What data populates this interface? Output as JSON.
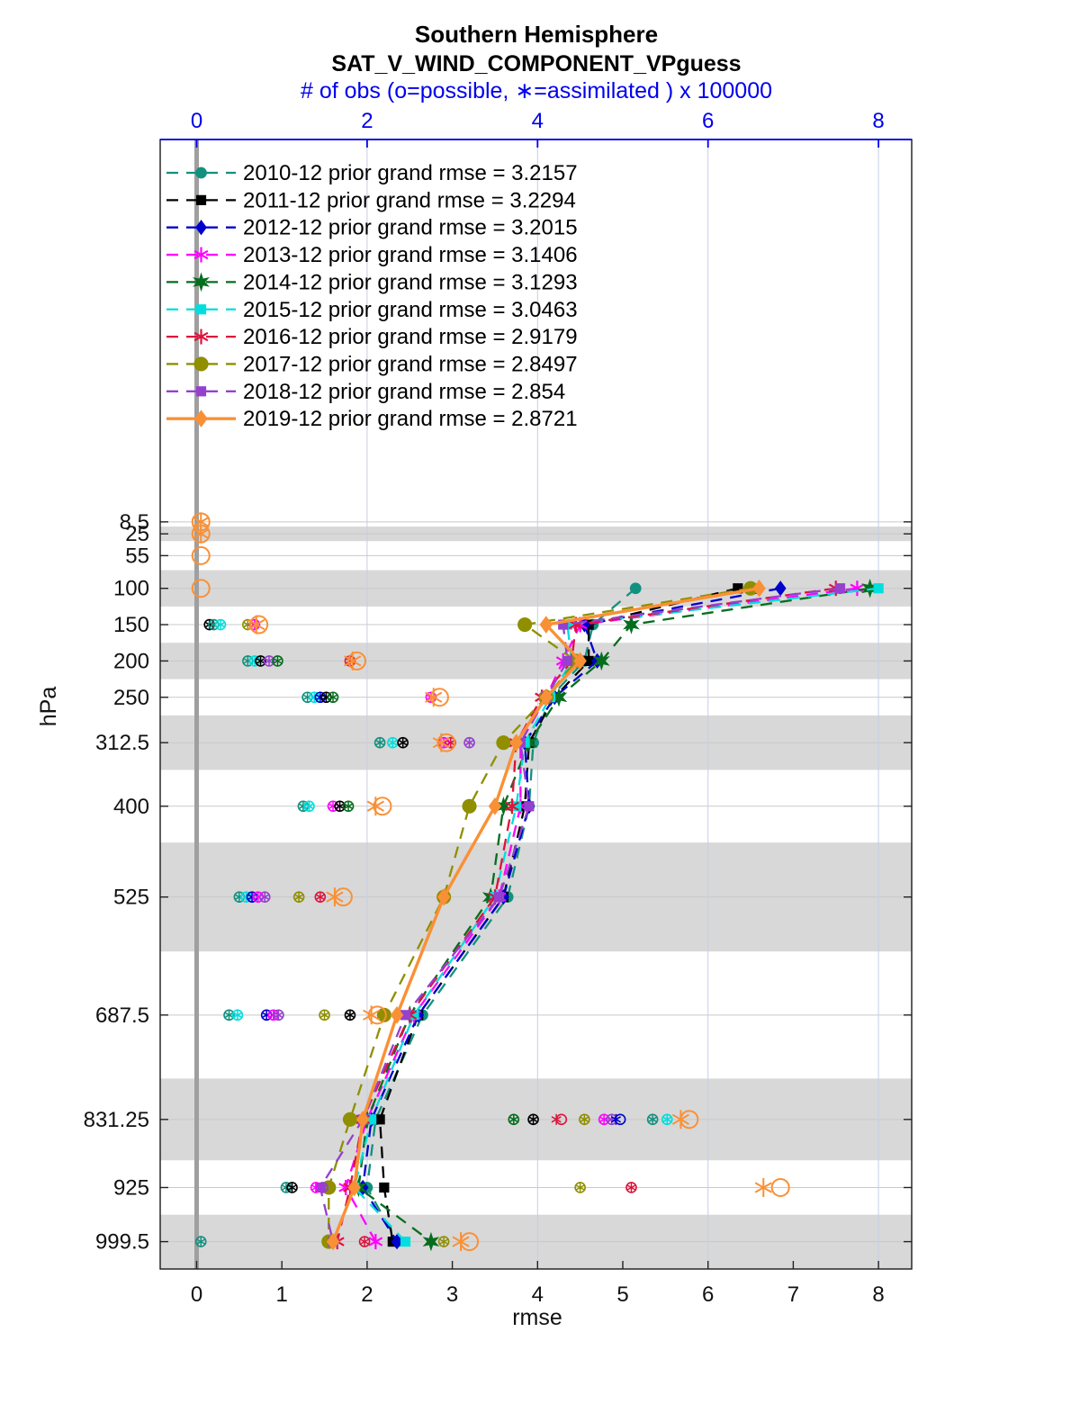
{
  "chart_data": {
    "type": "line",
    "title": "Southern Hemisphere",
    "subtitle": "SAT_V_WIND_COMPONENT_VPguess",
    "top_axis": {
      "label": "# of obs (o=possible, ∗=assimilated ) x 100000",
      "ticks": [
        0,
        2,
        4,
        6,
        8
      ],
      "color": "#0000ee",
      "scale_factor": 100000
    },
    "x_axis": {
      "label": "rmse",
      "ticks": [
        0,
        1,
        2,
        3,
        4,
        5,
        6,
        7,
        8
      ],
      "range": [
        -0.45,
        8.42
      ]
    },
    "y_axis": {
      "label": "hPa",
      "levels": [
        8.5,
        25,
        55,
        100,
        150,
        200,
        250,
        312.5,
        400,
        525,
        687.5,
        831.25,
        925,
        999.5
      ],
      "level_labels": [
        "8.5",
        "25",
        "55",
        "100",
        "150",
        "200",
        "250",
        "312.5",
        "400",
        "525",
        "687.5",
        "831.25",
        "925",
        "999.5"
      ]
    },
    "level_edges": [
      2,
      15,
      35,
      75,
      125,
      175,
      225,
      275,
      350,
      450,
      600,
      775,
      887.5,
      962.5,
      1037
    ],
    "shaded_levels": [
      25,
      100,
      200,
      312.5,
      525,
      831.25,
      999.5
    ],
    "band_color": "#d8d8d8",
    "zero_line_color": "#9f9f9f",
    "grid_color": "#c7cde6",
    "rmse_levels": [
      100,
      150,
      200,
      250,
      312.5,
      400,
      525,
      687.5,
      831.25,
      925,
      999.5
    ],
    "series": [
      {
        "year": "2010-12",
        "label": "2010-12 prior grand rmse = 3.2157",
        "grand_rmse": 3.2157,
        "color": "#13917f",
        "marker": "circle",
        "line": "dashed",
        "msize": 7.5,
        "rmse": [
          5.15,
          4.65,
          4.55,
          4.15,
          3.95,
          3.9,
          3.65,
          2.65,
          2.1,
          2.0,
          2.35
        ]
      },
      {
        "year": "2011-12",
        "label": "2011-12 prior grand rmse = 3.2294",
        "grand_rmse": 3.2294,
        "color": "#000000",
        "marker": "square",
        "line": "dashed",
        "msize": 7,
        "rmse": [
          6.35,
          4.6,
          4.6,
          4.2,
          3.9,
          3.85,
          3.6,
          2.6,
          2.15,
          2.2,
          2.3
        ]
      },
      {
        "year": "2012-12",
        "label": "2012-12 prior grand rmse = 3.2015",
        "grand_rmse": 3.2015,
        "color": "#0000cd",
        "marker": "diamond",
        "line": "dashed",
        "msize": 7.5,
        "rmse": [
          6.85,
          4.55,
          4.7,
          4.2,
          3.85,
          3.9,
          3.6,
          2.6,
          2.05,
          1.95,
          2.35
        ]
      },
      {
        "year": "2013-12",
        "label": "2013-12 prior grand rmse = 3.1406",
        "grand_rmse": 3.1406,
        "color": "#ff00ff",
        "marker": "asterisk",
        "line": "dashed",
        "msize": 8.5,
        "rmse": [
          7.75,
          4.5,
          4.3,
          4.1,
          3.8,
          3.8,
          3.55,
          2.55,
          2.0,
          1.75,
          2.1
        ]
      },
      {
        "year": "2014-12",
        "label": "2014-12 prior grand rmse = 3.1293",
        "grand_rmse": 3.1293,
        "color": "#056e1e",
        "marker": "hexagram",
        "line": "dashed",
        "msize": 9,
        "rmse": [
          7.9,
          5.1,
          4.75,
          4.25,
          3.9,
          3.6,
          3.45,
          2.5,
          2.0,
          1.9,
          2.75
        ]
      },
      {
        "year": "2015-12",
        "label": "2015-12 prior grand rmse = 3.0463",
        "grand_rmse": 3.0463,
        "color": "#00dede",
        "marker": "square",
        "line": "dashed",
        "msize": 7,
        "rmse": [
          8.0,
          4.35,
          4.4,
          4.15,
          3.85,
          3.75,
          3.5,
          2.55,
          2.05,
          1.85,
          2.45
        ]
      },
      {
        "year": "2016-12",
        "label": "2016-12 prior grand rmse = 2.9179",
        "grand_rmse": 2.9179,
        "color": "#dc143c",
        "marker": "asterisk",
        "line": "dashed",
        "msize": 8.5,
        "rmse": [
          7.5,
          4.45,
          4.4,
          4.05,
          3.75,
          3.7,
          3.5,
          2.5,
          1.95,
          1.8,
          1.65
        ]
      },
      {
        "year": "2017-12",
        "label": "2017-12 prior grand rmse = 2.8497",
        "grand_rmse": 2.8497,
        "color": "#8f8f00",
        "marker": "circle",
        "line": "dashed",
        "msize": 9.5,
        "rmse": [
          6.5,
          3.85,
          4.45,
          4.1,
          3.6,
          3.2,
          2.9,
          2.2,
          1.8,
          1.55,
          1.55
        ]
      },
      {
        "year": "2018-12",
        "label": "2018-12 prior grand rmse = 2.854",
        "grand_rmse": 2.854,
        "color": "#9540cf",
        "marker": "square",
        "line": "dashed",
        "msize": 7,
        "rmse": [
          7.55,
          4.3,
          4.35,
          4.1,
          3.8,
          3.9,
          3.55,
          2.45,
          1.95,
          1.45,
          1.6
        ]
      },
      {
        "year": "2019-12",
        "label": "2019-12 prior grand rmse = 2.8721",
        "grand_rmse": 2.8721,
        "color": "#fa9035",
        "marker": "diamond",
        "line": "solid",
        "msize": 8.5,
        "rmse": [
          6.6,
          4.1,
          4.5,
          4.1,
          3.75,
          3.5,
          2.9,
          2.35,
          1.95,
          1.85,
          1.6
        ]
      }
    ],
    "obs_markers": [
      {
        "level": 8.5,
        "year": "2019-12",
        "possible": 0.05,
        "assimilated": 0.05
      },
      {
        "level": 25,
        "year": "2019-12",
        "possible": 0.05,
        "assimilated": 0.05
      },
      {
        "level": 55,
        "year": "2019-12",
        "possible": 0.05,
        "assimilated": null
      },
      {
        "level": 100,
        "year": "2019-12",
        "possible": 0.05,
        "assimilated": null
      },
      {
        "level": 150,
        "year": "2011-12",
        "possible": 0.15,
        "assimilated": 0.15
      },
      {
        "level": 150,
        "year": "2010-12",
        "possible": 0.2,
        "assimilated": 0.2
      },
      {
        "level": 150,
        "year": "2015-12",
        "possible": 0.28,
        "assimilated": 0.28
      },
      {
        "level": 150,
        "year": "2017-12",
        "possible": 0.6,
        "assimilated": 0.6
      },
      {
        "level": 150,
        "year": "2013-12",
        "possible": 0.68,
        "assimilated": 0.68
      },
      {
        "level": 150,
        "year": "2019-12",
        "possible": 0.73,
        "assimilated": 0.7
      },
      {
        "level": 200,
        "year": "2010-12",
        "possible": 0.6,
        "assimilated": 0.6
      },
      {
        "level": 200,
        "year": "2015-12",
        "possible": 0.68,
        "assimilated": 0.68
      },
      {
        "level": 200,
        "year": "2011-12",
        "possible": 0.75,
        "assimilated": 0.75
      },
      {
        "level": 200,
        "year": "2018-12",
        "possible": 0.85,
        "assimilated": 0.85
      },
      {
        "level": 200,
        "year": "2014-12",
        "possible": 0.95,
        "assimilated": 0.95
      },
      {
        "level": 200,
        "year": "2016-12",
        "possible": 1.8,
        "assimilated": 1.8
      },
      {
        "level": 200,
        "year": "2019-12",
        "possible": 1.88,
        "assimilated": 1.83
      },
      {
        "level": 250,
        "year": "2010-12",
        "possible": 1.3,
        "assimilated": 1.3
      },
      {
        "level": 250,
        "year": "2015-12",
        "possible": 1.38,
        "assimilated": 1.38
      },
      {
        "level": 250,
        "year": "2012-12",
        "possible": 1.45,
        "assimilated": 1.45
      },
      {
        "level": 250,
        "year": "2011-12",
        "possible": 1.52,
        "assimilated": 1.52
      },
      {
        "level": 250,
        "year": "2014-12",
        "possible": 1.6,
        "assimilated": 1.6
      },
      {
        "level": 250,
        "year": "2013-12",
        "possible": 2.75,
        "assimilated": 2.75
      },
      {
        "level": 250,
        "year": "2019-12",
        "possible": 2.85,
        "assimilated": 2.78
      },
      {
        "level": 312.5,
        "year": "2010-12",
        "possible": 2.15,
        "assimilated": 2.15
      },
      {
        "level": 312.5,
        "year": "2015-12",
        "possible": 2.3,
        "assimilated": 2.3
      },
      {
        "level": 312.5,
        "year": "2011-12",
        "possible": 2.42,
        "assimilated": 2.42
      },
      {
        "level": 312.5,
        "year": "2013-12",
        "possible": 2.9,
        "assimilated": 2.9
      },
      {
        "level": 312.5,
        "year": "2016-12",
        "possible": 2.98,
        "assimilated": 2.98
      },
      {
        "level": 312.5,
        "year": "2019-12",
        "possible": 2.93,
        "assimilated": 2.87
      },
      {
        "level": 312.5,
        "year": "2018-12",
        "possible": 3.2,
        "assimilated": 3.2
      },
      {
        "level": 400,
        "year": "2010-12",
        "possible": 1.25,
        "assimilated": 1.25
      },
      {
        "level": 400,
        "year": "2015-12",
        "possible": 1.32,
        "assimilated": 1.32
      },
      {
        "level": 400,
        "year": "2013-12",
        "possible": 1.6,
        "assimilated": 1.6
      },
      {
        "level": 400,
        "year": "2011-12",
        "possible": 1.68,
        "assimilated": 1.68
      },
      {
        "level": 400,
        "year": "2014-12",
        "possible": 1.78,
        "assimilated": 1.78
      },
      {
        "level": 400,
        "year": "2019-12",
        "possible": 2.18,
        "assimilated": 2.1
      },
      {
        "level": 525,
        "year": "2010-12",
        "possible": 0.5,
        "assimilated": 0.5
      },
      {
        "level": 525,
        "year": "2015-12",
        "possible": 0.58,
        "assimilated": 0.58
      },
      {
        "level": 525,
        "year": "2012-12",
        "possible": 0.65,
        "assimilated": 0.65
      },
      {
        "level": 525,
        "year": "2013-12",
        "possible": 0.72,
        "assimilated": 0.72
      },
      {
        "level": 525,
        "year": "2018-12",
        "possible": 0.8,
        "assimilated": 0.8
      },
      {
        "level": 525,
        "year": "2017-12",
        "possible": 1.2,
        "assimilated": 1.2
      },
      {
        "level": 525,
        "year": "2016-12",
        "possible": 1.45,
        "assimilated": 1.45
      },
      {
        "level": 525,
        "year": "2019-12",
        "possible": 1.72,
        "assimilated": 1.62
      },
      {
        "level": 687.5,
        "year": "2010-12",
        "possible": 0.38,
        "assimilated": 0.38
      },
      {
        "level": 687.5,
        "year": "2015-12",
        "possible": 0.48,
        "assimilated": 0.48
      },
      {
        "level": 687.5,
        "year": "2012-12",
        "possible": 0.82,
        "assimilated": 0.82
      },
      {
        "level": 687.5,
        "year": "2013-12",
        "possible": 0.9,
        "assimilated": 0.9
      },
      {
        "level": 687.5,
        "year": "2018-12",
        "possible": 0.96,
        "assimilated": 0.96
      },
      {
        "level": 687.5,
        "year": "2017-12",
        "possible": 1.5,
        "assimilated": 1.5
      },
      {
        "level": 687.5,
        "year": "2011-12",
        "possible": 1.8,
        "assimilated": 1.8
      },
      {
        "level": 687.5,
        "year": "2019-12",
        "possible": 2.12,
        "assimilated": 2.05
      },
      {
        "level": 831.25,
        "year": "2014-12",
        "possible": 3.72,
        "assimilated": 3.72
      },
      {
        "level": 831.25,
        "year": "2011-12",
        "possible": 3.95,
        "assimilated": 3.95
      },
      {
        "level": 831.25,
        "year": "2016-12",
        "possible": 4.28,
        "assimilated": 4.22
      },
      {
        "level": 831.25,
        "year": "2017-12",
        "possible": 4.55,
        "assimilated": 4.55
      },
      {
        "level": 831.25,
        "year": "2013-12",
        "possible": 4.78,
        "assimilated": 4.78
      },
      {
        "level": 831.25,
        "year": "2018-12",
        "possible": 4.87,
        "assimilated": 4.87
      },
      {
        "level": 831.25,
        "year": "2012-12",
        "possible": 4.97,
        "assimilated": 4.92
      },
      {
        "level": 831.25,
        "year": "2010-12",
        "possible": 5.35,
        "assimilated": 5.35
      },
      {
        "level": 831.25,
        "year": "2015-12",
        "possible": 5.52,
        "assimilated": 5.52
      },
      {
        "level": 831.25,
        "year": "2019-12",
        "possible": 5.78,
        "assimilated": 5.68
      },
      {
        "level": 925,
        "year": "2010-12",
        "possible": 1.05,
        "assimilated": 1.05
      },
      {
        "level": 925,
        "year": "2011-12",
        "possible": 1.12,
        "assimilated": 1.12
      },
      {
        "level": 925,
        "year": "2013-12",
        "possible": 1.4,
        "assimilated": 1.4
      },
      {
        "level": 925,
        "year": "2018-12",
        "possible": 1.48,
        "assimilated": 1.48
      },
      {
        "level": 925,
        "year": "2017-12",
        "possible": 4.5,
        "assimilated": 4.5
      },
      {
        "level": 925,
        "year": "2016-12",
        "possible": 5.1,
        "assimilated": 5.1
      },
      {
        "level": 925,
        "year": "2019-12",
        "possible": 6.85,
        "assimilated": 6.65
      },
      {
        "level": 999.5,
        "year": "2010-12",
        "possible": 0.05,
        "assimilated": 0.05
      },
      {
        "level": 999.5,
        "year": "2016-12",
        "possible": 1.97,
        "assimilated": 1.97
      },
      {
        "level": 999.5,
        "year": "2017-12",
        "possible": 2.9,
        "assimilated": 2.9
      },
      {
        "level": 999.5,
        "year": "2019-12",
        "possible": 3.2,
        "assimilated": 3.1
      }
    ],
    "legend_position": "top-left-inside",
    "grid": true
  }
}
